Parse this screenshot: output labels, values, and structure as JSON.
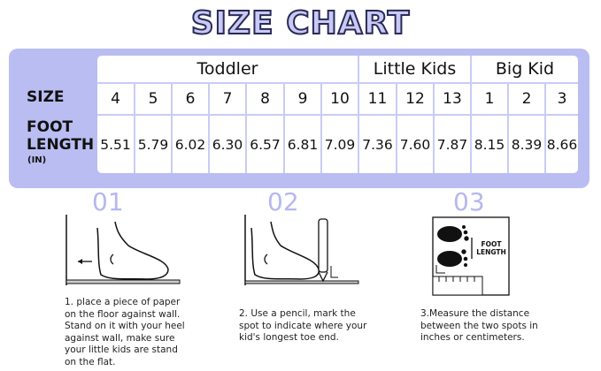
{
  "title": "SIZE CHART",
  "row_labels": {
    "size": "SIZE",
    "foot_length": "FOOT LENGTH",
    "unit": "(IN)"
  },
  "groups": [
    {
      "label": "Toddler",
      "span": 7
    },
    {
      "label": "Little Kids",
      "span": 3
    },
    {
      "label": "Big Kid",
      "span": 3
    }
  ],
  "sizes": [
    "4",
    "5",
    "6",
    "7",
    "8",
    "9",
    "10",
    "11",
    "12",
    "13",
    "1",
    "2",
    "3"
  ],
  "foot_lengths": [
    "5.51",
    "5.79",
    "6.02",
    "6.30",
    "6.57",
    "6.81",
    "7.09",
    "7.36",
    "7.60",
    "7.87",
    "8.15",
    "8.39",
    "8.66"
  ],
  "steps": [
    {
      "number": "01",
      "text": "1. place a piece of paper on the floor against wall. Stand on it with your heel against wall, make sure your little kids are stand on the flat."
    },
    {
      "number": "02",
      "text": "2. Use a pencil, mark the spot to indicate where your kid's longest toe end."
    },
    {
      "number": "03",
      "text": "3.Measure the distance between the two spots in inches or centimeters.",
      "illustration_label": "FOOT LENGTH"
    }
  ],
  "colors": {
    "panel": "#b9bdf2",
    "step_number": "#b5b8ee",
    "title_fill": "#c8c9f6"
  }
}
